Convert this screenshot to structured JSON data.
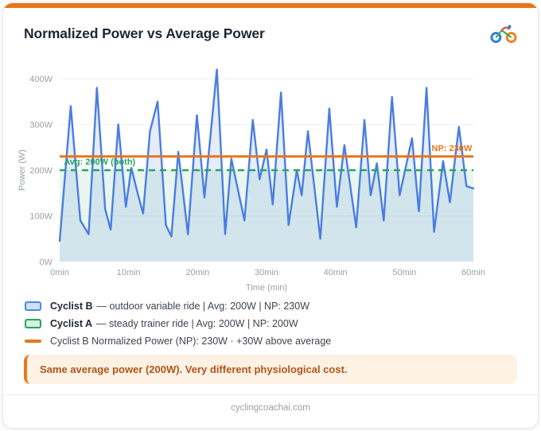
{
  "page": {
    "title": "Normalized Power vs Average Power",
    "footer_domain": "cyclingcoachai.com",
    "accent_color": "#E8751A"
  },
  "chart_data": {
    "type": "line",
    "title": "Normalized Power vs Average Power",
    "xlabel": "Time (min)",
    "ylabel": "Power (W)",
    "xlim": [
      0,
      60
    ],
    "ylim": [
      0,
      430
    ],
    "x_ticks": [
      "0min",
      "10min",
      "20min",
      "30min",
      "40min",
      "50min",
      "60min"
    ],
    "y_ticks": [
      "0W",
      "100W",
      "200W",
      "300W",
      "400W"
    ],
    "grid": true,
    "legend_position": "below",
    "series": [
      {
        "name": "Cyclist B — outdoor variable ride",
        "type": "area-line",
        "color": "#4A7DE2",
        "fill_opacity": 0.14,
        "avg": 200,
        "np": 230,
        "x": [
          0,
          1.6,
          3,
          4.2,
          5.4,
          6.6,
          7.4,
          8.5,
          9.6,
          10.4,
          11.3,
          12.1,
          13.1,
          14.2,
          15.4,
          16.2,
          17.2,
          18.6,
          19.9,
          21,
          22.8,
          24,
          24.9,
          26.8,
          28,
          29,
          30,
          30.9,
          32.1,
          33.2,
          34.4,
          35.1,
          36,
          37.8,
          39.1,
          40.2,
          41.3,
          43,
          44.2,
          45.1,
          46,
          47,
          48.2,
          49.3,
          51.1,
          52.1,
          53.2,
          54.3,
          55.6,
          56.6,
          57.9,
          59,
          60
        ],
        "y": [
          45,
          340,
          90,
          60,
          380,
          115,
          70,
          300,
          120,
          205,
          150,
          105,
          285,
          350,
          80,
          55,
          240,
          60,
          320,
          140,
          420,
          60,
          225,
          90,
          310,
          180,
          245,
          125,
          370,
          80,
          200,
          145,
          285,
          50,
          335,
          120,
          255,
          75,
          310,
          145,
          215,
          90,
          360,
          145,
          270,
          110,
          380,
          65,
          220,
          130,
          295,
          165,
          160
        ]
      },
      {
        "name": "Cyclist A — steady trainer ride (constant)",
        "type": "area-hline",
        "color": "#28A55E",
        "fill_opacity": 0.1,
        "value": 200,
        "dashed": true,
        "avg": 200,
        "np": 200
      },
      {
        "name": "Cyclist B Normalized Power",
        "type": "hline",
        "color": "#E8751A",
        "value": 230
      }
    ],
    "annotations": [
      {
        "text": "Avg: 200W (both)",
        "color": "#28A55E",
        "x": 0.6,
        "y": 200,
        "anchor": "start"
      },
      {
        "text": "NP: 230W",
        "color": "#E8751A",
        "x": 59.8,
        "y": 230,
        "anchor": "end"
      }
    ]
  },
  "legend": {
    "items": [
      {
        "name": "Cyclist B",
        "text": "— outdoor variable ride  |  Avg: 200W  |  NP: 230W"
      },
      {
        "name": "Cyclist A",
        "text": "— steady trainer ride  |  Avg: 200W  |  NP: 200W"
      },
      {
        "name": "",
        "text": "Cyclist B Normalized Power (NP): 230W  ·  +30W above average"
      }
    ]
  },
  "callout": {
    "text": "Same average power (200W). Very different physiological cost."
  }
}
